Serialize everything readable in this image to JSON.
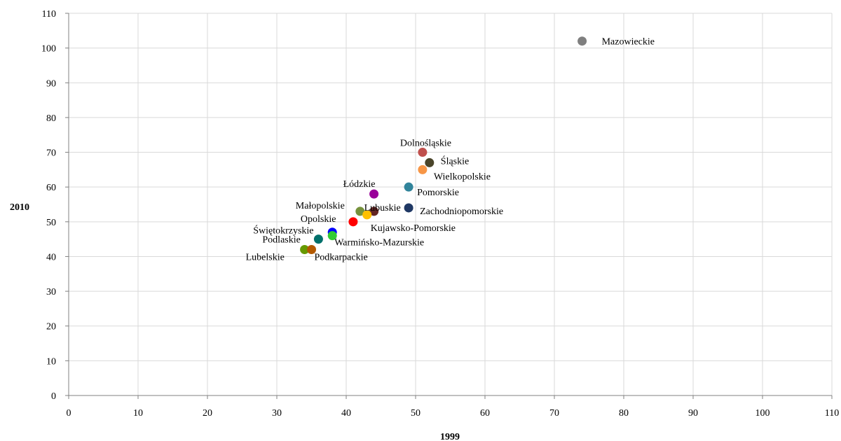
{
  "chart_data": {
    "type": "scatter",
    "xlabel": "1999",
    "ylabel": "2010",
    "xlim": [
      0,
      110
    ],
    "ylim": [
      0,
      110
    ],
    "xticks": [
      0,
      10,
      20,
      30,
      40,
      50,
      60,
      70,
      80,
      90,
      100,
      110
    ],
    "yticks": [
      0,
      10,
      20,
      30,
      40,
      50,
      60,
      70,
      80,
      90,
      100,
      110
    ],
    "grid": true,
    "points": [
      {
        "label": "Mazowieckie",
        "x": 74,
        "y": 102,
        "color": "#7f7f7f"
      },
      {
        "label": "Dolnośląskie",
        "x": 51,
        "y": 70,
        "color": "#c0504d"
      },
      {
        "label": "Śląskie",
        "x": 52,
        "y": 67,
        "color": "#4a452a"
      },
      {
        "label": "Wielkopolskie",
        "x": 51,
        "y": 65,
        "color": "#f79646"
      },
      {
        "label": "Pomorskie",
        "x": 49,
        "y": 60,
        "color": "#31849b"
      },
      {
        "label": "Łódzkie",
        "x": 44,
        "y": 58,
        "color": "#990099"
      },
      {
        "label": "Zachodniopomorskie",
        "x": 49,
        "y": 54,
        "color": "#1f3864"
      },
      {
        "label": "Małopolskie",
        "x": 42,
        "y": 53,
        "color": "#76923c"
      },
      {
        "label": "Lubuskie",
        "x": 44,
        "y": 53,
        "color": "#632523"
      },
      {
        "label": "Kujawsko-Pomorskie",
        "x": 43,
        "y": 52,
        "color": "#ffc000"
      },
      {
        "label": "Opolskie",
        "x": 41,
        "y": 50,
        "color": "#ff0000"
      },
      {
        "label": "Świętokrzyskie",
        "x": 38,
        "y": 47,
        "color": "#0000ff"
      },
      {
        "label": "Warmińsko-Mazurskie",
        "x": 38,
        "y": 46,
        "color": "#33cc33"
      },
      {
        "label": "Podlaskie",
        "x": 36,
        "y": 45,
        "color": "#00706b"
      },
      {
        "label": "Lubelskie",
        "x": 34,
        "y": 42,
        "color": "#669900"
      },
      {
        "label": "Podkarpackie",
        "x": 35,
        "y": 42,
        "color": "#b35900"
      }
    ]
  }
}
